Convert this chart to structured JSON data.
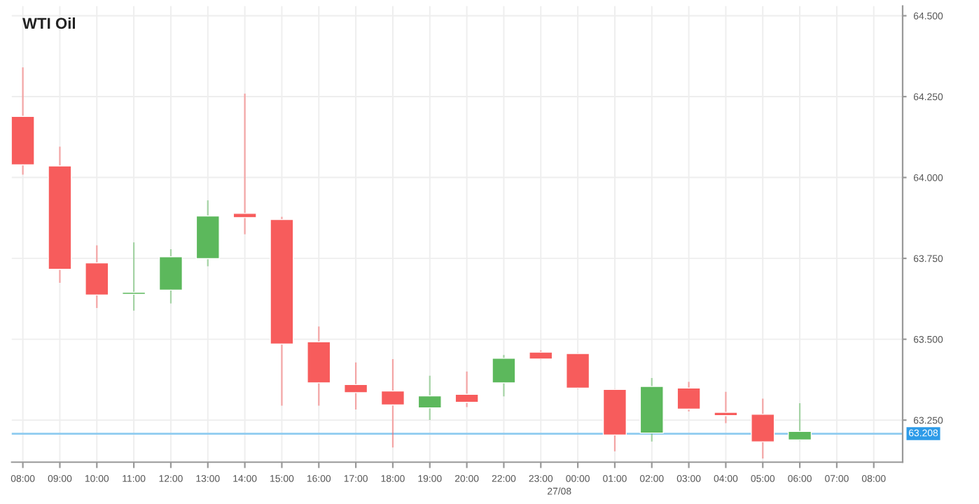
{
  "chart_data": {
    "type": "candlestick",
    "title": "WTI Oil",
    "categories": [
      "08:00",
      "09:00",
      "10:00",
      "11:00",
      "12:00",
      "13:00",
      "14:00",
      "15:00",
      "16:00",
      "17:00",
      "18:00",
      "19:00",
      "20:00",
      "22:00",
      "23:00",
      "00:00",
      "01:00",
      "02:00",
      "03:00",
      "04:00",
      "05:00",
      "06:00",
      "07:00",
      "08:00"
    ],
    "ohlc": [
      [
        64.189,
        64.338,
        64.011,
        64.039
      ],
      [
        64.036,
        64.093,
        63.677,
        63.716
      ],
      [
        63.736,
        63.788,
        63.599,
        63.637
      ],
      [
        63.639,
        63.797,
        63.591,
        63.645
      ],
      [
        63.652,
        63.776,
        63.613,
        63.755
      ],
      [
        63.749,
        63.927,
        63.728,
        63.881
      ],
      [
        63.889,
        64.257,
        63.827,
        63.876
      ],
      [
        63.87,
        63.876,
        63.297,
        63.485
      ],
      [
        63.492,
        63.537,
        63.297,
        63.365
      ],
      [
        63.36,
        63.426,
        63.285,
        63.335
      ],
      [
        63.34,
        63.436,
        63.168,
        63.297
      ],
      [
        63.288,
        63.385,
        63.253,
        63.325
      ],
      [
        63.33,
        63.398,
        63.293,
        63.305
      ],
      [
        63.365,
        63.449,
        63.326,
        63.441
      ],
      [
        63.46,
        63.463,
        63.439,
        63.439
      ],
      [
        63.456,
        63.456,
        63.349,
        63.349
      ],
      [
        63.345,
        63.345,
        63.156,
        63.204
      ],
      [
        63.21,
        63.378,
        63.186,
        63.354
      ],
      [
        63.349,
        63.366,
        63.279,
        63.284
      ],
      [
        63.274,
        63.335,
        63.243,
        63.264
      ],
      [
        63.268,
        63.314,
        63.134,
        63.183
      ],
      [
        63.189,
        63.3,
        63.189,
        63.215
      ],
      null,
      null
    ],
    "colors": [
      "#f75c5c",
      "#f75c5c",
      "#f75c5c",
      "#5cb85c",
      "#5cb85c",
      "#5cb85c",
      "#f75c5c",
      "#f75c5c",
      "#f75c5c",
      "#f75c5c",
      "#f75c5c",
      "#5cb85c",
      "#f75c5c",
      "#5cb85c",
      "#f75c5c",
      "#f75c5c",
      "#f75c5c",
      "#5cb85c",
      "#f75c5c",
      "#f75c5c",
      "#f75c5c",
      "#5cb85c",
      null,
      null
    ],
    "ylim": [
      63.12,
      64.53
    ],
    "yticks": [
      {
        "value": 63.25,
        "label": "63.250"
      },
      {
        "value": 63.5,
        "label": "63.500"
      },
      {
        "value": 63.75,
        "label": "63.750"
      },
      {
        "value": 64.0,
        "label": "64.000"
      },
      {
        "value": 64.25,
        "label": "64.250"
      },
      {
        "value": 64.5,
        "label": "64.500"
      }
    ],
    "ref_lines": [
      {
        "axis": "y",
        "value": 63.208,
        "label": "63.208",
        "color": "#8ecbf0"
      }
    ],
    "annotations": [
      "27/08"
    ],
    "grid": true,
    "legend": false
  }
}
